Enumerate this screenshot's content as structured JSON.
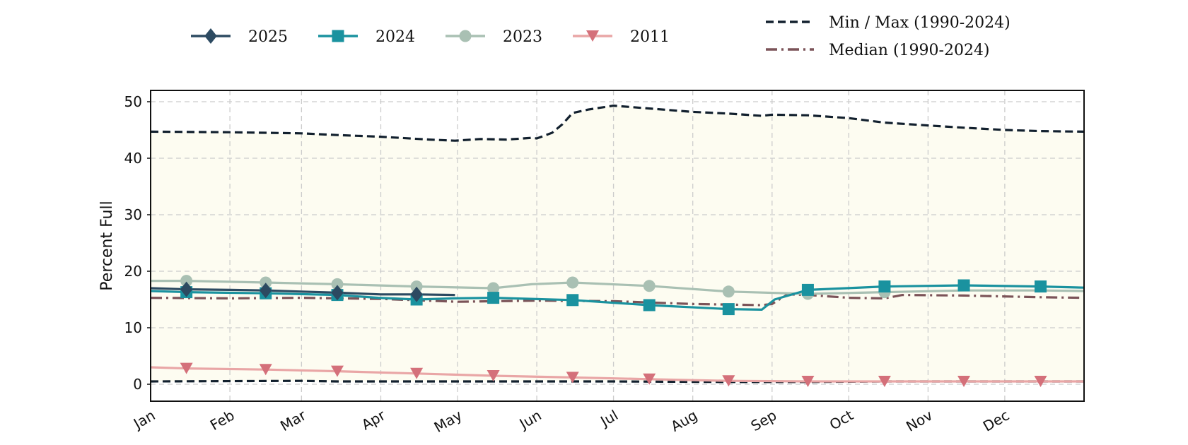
{
  "chart_data": {
    "type": "line",
    "title": "",
    "xlabel": "",
    "ylabel": "Percent Full",
    "x_tick_labels": [
      "Jan",
      "Feb",
      "Mar",
      "Apr",
      "May",
      "Jun",
      "Jul",
      "Aug",
      "Sep",
      "Oct",
      "Nov",
      "Dec"
    ],
    "x_tick_days": [
      1,
      32,
      60,
      91,
      121,
      152,
      182,
      213,
      244,
      274,
      305,
      335
    ],
    "x_domain": [
      1,
      366
    ],
    "y_ticks": [
      0,
      10,
      20,
      30,
      40,
      50
    ],
    "ylim": [
      -3,
      52
    ],
    "grid": true,
    "legend_placement": "top",
    "series": [
      {
        "name": "2025",
        "color": "#2c4a61",
        "marker": "diamond",
        "style": "solid",
        "x": [
          1,
          15,
          32,
          46,
          60,
          74,
          91,
          105,
          120
        ],
        "y": [
          17.0,
          16.8,
          16.7,
          16.6,
          16.4,
          16.2,
          15.9,
          15.9,
          15.8
        ],
        "marker_x": [
          15,
          46,
          74,
          105
        ]
      },
      {
        "name": "2024",
        "color": "#1a929f",
        "marker": "square",
        "style": "solid",
        "x": [
          1,
          15,
          46,
          74,
          90,
          105,
          120,
          135,
          166,
          196,
          227,
          240,
          245,
          258,
          288,
          319,
          349,
          366
        ],
        "y": [
          16.5,
          16.3,
          16.1,
          15.8,
          15.3,
          15.0,
          15.2,
          15.3,
          14.9,
          14.0,
          13.3,
          13.2,
          15.0,
          16.7,
          17.3,
          17.5,
          17.3,
          17.1
        ],
        "marker_x": [
          15,
          46,
          74,
          105,
          135,
          166,
          196,
          227,
          258,
          288,
          319,
          349
        ]
      },
      {
        "name": "2023",
        "color": "#a9c0b3",
        "marker": "circle",
        "style": "solid",
        "x": [
          1,
          15,
          46,
          74,
          105,
          135,
          150,
          166,
          196,
          227,
          258,
          288,
          319,
          349,
          366
        ],
        "y": [
          18.3,
          18.3,
          18.0,
          17.7,
          17.3,
          17.0,
          17.7,
          18.0,
          17.4,
          16.4,
          16.0,
          16.3,
          16.6,
          16.6,
          16.5
        ],
        "marker_x": [
          15,
          46,
          74,
          105,
          135,
          166,
          196,
          227,
          258,
          288
        ]
      },
      {
        "name": "2011",
        "color": "#d4707a",
        "line_color": "#e9a6a6",
        "marker": "triangle-down",
        "style": "solid",
        "x": [
          1,
          15,
          46,
          74,
          105,
          135,
          166,
          196,
          227,
          258,
          288,
          319,
          349,
          366
        ],
        "y": [
          3.0,
          2.8,
          2.6,
          2.3,
          1.9,
          1.5,
          1.2,
          0.9,
          0.6,
          0.5,
          0.5,
          0.5,
          0.5,
          0.5
        ],
        "marker_x": [
          15,
          46,
          74,
          105,
          135,
          166,
          196,
          227,
          258,
          288,
          319,
          349
        ]
      },
      {
        "name": "Min / Max (1990-2024)",
        "color": "#12202e",
        "style": "dashed",
        "max_x": [
          1,
          32,
          60,
          74,
          91,
          110,
          120,
          130,
          140,
          150,
          152,
          158,
          162,
          166,
          172,
          182,
          196,
          213,
          227,
          240,
          244,
          258,
          274,
          288,
          305,
          319,
          335,
          349,
          366
        ],
        "max_y": [
          44.7,
          44.6,
          44.4,
          44.1,
          43.8,
          43.3,
          43.1,
          43.4,
          43.3,
          43.6,
          43.5,
          44.5,
          46.0,
          48.0,
          48.6,
          49.3,
          48.8,
          48.2,
          47.9,
          47.5,
          47.7,
          47.6,
          47.1,
          46.3,
          45.8,
          45.4,
          45.0,
          44.8,
          44.7
        ],
        "min_x": [
          1,
          60,
          74,
          120,
          182,
          227,
          258,
          288,
          335,
          366
        ],
        "min_y": [
          0.5,
          0.6,
          0.5,
          0.5,
          0.5,
          0.4,
          0.4,
          0.5,
          0.5,
          0.5
        ]
      },
      {
        "name": "Median (1990-2024)",
        "color": "#7b5358",
        "style": "dashdot",
        "x": [
          1,
          32,
          60,
          91,
          121,
          152,
          182,
          213,
          227,
          240,
          244,
          250,
          258,
          274,
          288,
          295,
          319,
          349,
          366
        ],
        "y": [
          15.3,
          15.2,
          15.3,
          15.1,
          14.6,
          14.8,
          14.7,
          14.2,
          14.1,
          14.0,
          14.2,
          15.9,
          15.8,
          15.3,
          15.2,
          15.8,
          15.7,
          15.4,
          15.3
        ]
      }
    ],
    "band_fill": "#fdfcf1"
  }
}
